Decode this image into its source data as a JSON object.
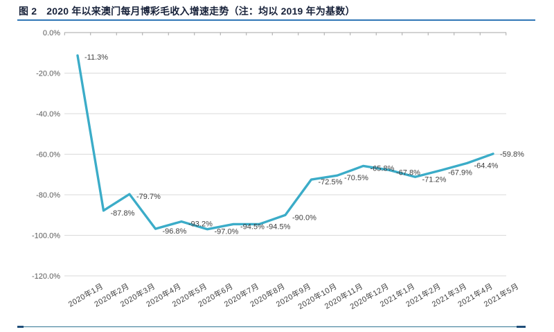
{
  "figure": {
    "label": "图 2",
    "title": "2020 年以来澳门每月博彩毛收入增速走势（注：均以 2019 年为基数）",
    "accent_color": "#2E75B6",
    "footer_rule_color": "#2F7391"
  },
  "chart_data": {
    "type": "line",
    "title": "2020 年以来澳门每月博彩毛收入增速走势（均以 2019 年为基数）",
    "categories": [
      "2020年1月",
      "2020年2月",
      "2020年3月",
      "2020年4月",
      "2020年5月",
      "2020年6月",
      "2020年7月",
      "2020年8月",
      "2020年9月",
      "2020年10月",
      "2020年11月",
      "2020年12月",
      "2021年1月",
      "2021年2月",
      "2021年3月",
      "2021年4月",
      "2021年5月"
    ],
    "values": [
      -11.3,
      -87.8,
      -79.7,
      -96.8,
      -93.2,
      -97.0,
      -94.5,
      -94.5,
      -90.0,
      -72.5,
      -70.5,
      -65.8,
      -67.8,
      -71.2,
      -67.9,
      -64.4,
      -59.8
    ],
    "data_labels": [
      "-11.3%",
      "-87.8%",
      "-79.7%",
      "-96.8%",
      "-93.2%",
      "-97.0%",
      "-94.5%",
      "-94.5%",
      "-90.0%",
      "-72.5%",
      "-70.5%",
      "-65.8%",
      "-67.8%",
      "-71.2%",
      "-67.9%",
      "-64.4%",
      "-59.8%"
    ],
    "yticks": [
      0,
      -20,
      -40,
      -60,
      -80,
      -100,
      -120
    ],
    "ytick_labels": [
      "0.0%",
      "-20.0%",
      "-40.0%",
      "-60.0%",
      "-80.0%",
      "-100.0%",
      "-120.0%"
    ],
    "ylim": [
      -120,
      0
    ],
    "xlabel": "",
    "ylabel": "",
    "grid": true,
    "legend": false,
    "line_color": "#3BACC8",
    "gridline_color": "#D9D9D9",
    "axis_color": "#A6A6A6"
  }
}
